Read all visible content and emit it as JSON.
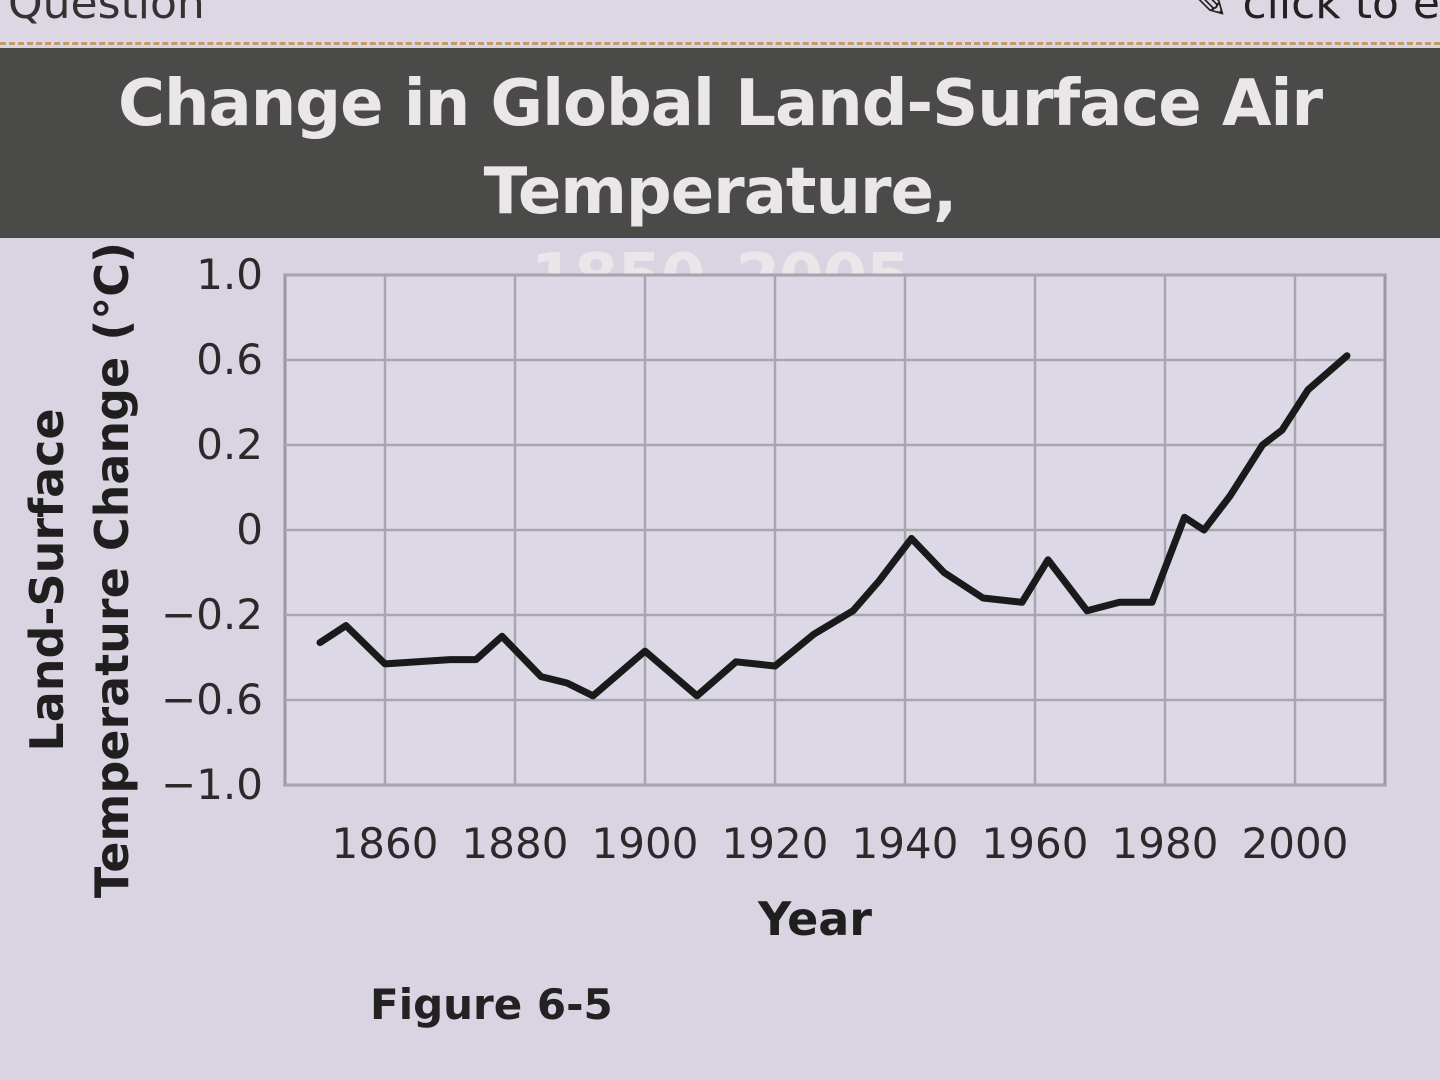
{
  "header": {
    "question_label": "Question",
    "edit_label": "click to e",
    "edit_icon": "pencil-icon"
  },
  "caption": "Figure 6-5",
  "chart_data": {
    "type": "line",
    "title": "Change in Global Land-Surface Air Temperature,",
    "subtitle": "1850–2005",
    "xlabel": "Year",
    "ylabel_line1": "Land-Surface",
    "ylabel_line2": "Temperature Change (°C)",
    "x_ticks": [
      1860,
      1880,
      1900,
      1920,
      1940,
      1960,
      1980,
      2000
    ],
    "y_ticks": [
      "1.0",
      "0.6",
      "0.2",
      "0",
      "−0.2",
      "−0.6",
      "−1.0"
    ],
    "y_tick_values": [
      1.0,
      0.6,
      0.2,
      0,
      -0.2,
      -0.6,
      -1.0
    ],
    "grid": true,
    "series": [
      {
        "x": [
          1850,
          1854,
          1860,
          1870,
          1874,
          1878,
          1884,
          1888,
          1892,
          1900,
          1908,
          1914,
          1920,
          1926,
          1932,
          1936,
          1941,
          1946,
          1952,
          1958,
          1962,
          1968,
          1973,
          1978,
          1983,
          1986,
          1990,
          1995,
          1998,
          2002,
          2008
        ],
        "y": [
          -0.33,
          -0.25,
          -0.43,
          -0.41,
          -0.41,
          -0.3,
          -0.49,
          -0.52,
          -0.58,
          -0.37,
          -0.58,
          -0.42,
          -0.44,
          -0.29,
          -0.19,
          -0.12,
          -0.02,
          -0.1,
          -0.16,
          -0.17,
          -0.07,
          -0.19,
          -0.17,
          -0.17,
          0.03,
          0.0,
          0.08,
          0.2,
          0.27,
          0.46,
          0.62
        ]
      }
    ]
  }
}
